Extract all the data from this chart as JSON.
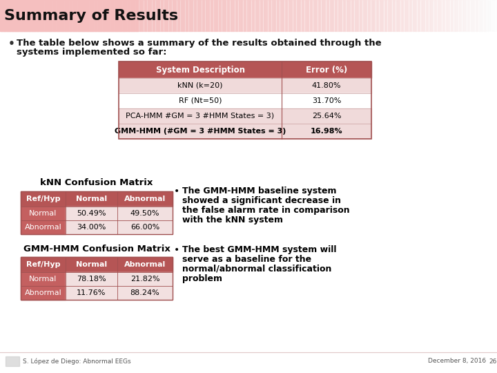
{
  "title": "Summary of Results",
  "bg_color": "#FFFFFF",
  "title_bar_color": "#F5BFBF",
  "bullet_text_line1": "The table below shows a summary of the results obtained through the",
  "bullet_text_line2": "systems implemented so far:",
  "main_table_header": [
    "System Description",
    "Error (%)"
  ],
  "main_table_rows": [
    [
      "kNN (k=20)",
      "41.80%"
    ],
    [
      "RF (Nt=50)",
      "31.70%"
    ],
    [
      "PCA-HMM #GM = 3 #HMM States = 3)",
      "25.64%"
    ],
    [
      "GMM-HMM (#GM = 3 #HMM States = 3)",
      "16.98%"
    ]
  ],
  "main_table_row_bold": [
    false,
    false,
    false,
    true
  ],
  "main_table_row_colors": [
    "#F0DADA",
    "#FFFFFF",
    "#F0DADA",
    "#F0DADA"
  ],
  "knn_matrix_title": "kNN Confusion Matrix",
  "knn_matrix_header": [
    "Ref/Hyp",
    "Normal",
    "Abnormal"
  ],
  "knn_matrix_rows": [
    [
      "Normal",
      "50.49%",
      "49.50%"
    ],
    [
      "Abnormal",
      "34.00%",
      "66.00%"
    ]
  ],
  "gmm_matrix_title": "GMM-HMM Confusion Matrix",
  "gmm_matrix_header": [
    "Ref/Hyp",
    "Normal",
    "Abnormal"
  ],
  "gmm_matrix_rows": [
    [
      "Normal",
      "78.18%",
      "21.82%"
    ],
    [
      "Abnormal",
      "11.76%",
      "88.24%"
    ]
  ],
  "right_bullets": [
    [
      "The GMM-HMM baseline system",
      "showed a significant decrease in",
      "the false alarm rate in comparison",
      "with the kNN system"
    ],
    [
      "The best GMM-HMM system will",
      "serve as a baseline for the",
      "normal/abnormal classification",
      "problem"
    ]
  ],
  "table_header_color": "#B55555",
  "table_row_light": "#F2E0E0",
  "table_row_white": "#FFFFFF",
  "conf_header_color": "#B55555",
  "conf_label_color": "#C46060",
  "conf_data_light": "#F2E0E0",
  "footer_text": "S. López de Diego: Abnormal EEGs",
  "footer_date": "December 8, 2016",
  "page_num": "26"
}
